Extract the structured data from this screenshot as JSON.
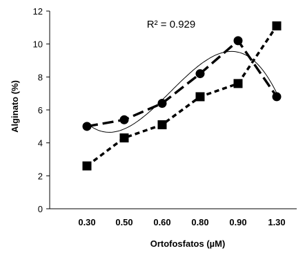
{
  "chart_data": {
    "type": "line",
    "categories": [
      "0.30",
      "0.50",
      "0.60",
      "0.80",
      "0.90",
      "1.30"
    ],
    "series": [
      {
        "marker": "circle",
        "values": [
          5.0,
          5.4,
          6.4,
          8.2,
          10.2,
          6.8
        ]
      },
      {
        "marker": "square",
        "values": [
          2.6,
          4.3,
          5.1,
          6.8,
          7.6,
          11.1
        ]
      }
    ],
    "trendline": {
      "type": "polynomial",
      "series_index": 0
    },
    "annotation": "R² = 0.929",
    "xlabel": "Ortofosfatos (µM)",
    "ylabel": "Alginato (%)",
    "ylim": [
      0,
      12
    ],
    "yticks": [
      0,
      2,
      4,
      6,
      8,
      10,
      12
    ],
    "grid": false,
    "legend": "none",
    "colors": {
      "series": "#000000",
      "trendline": "#000000"
    }
  }
}
